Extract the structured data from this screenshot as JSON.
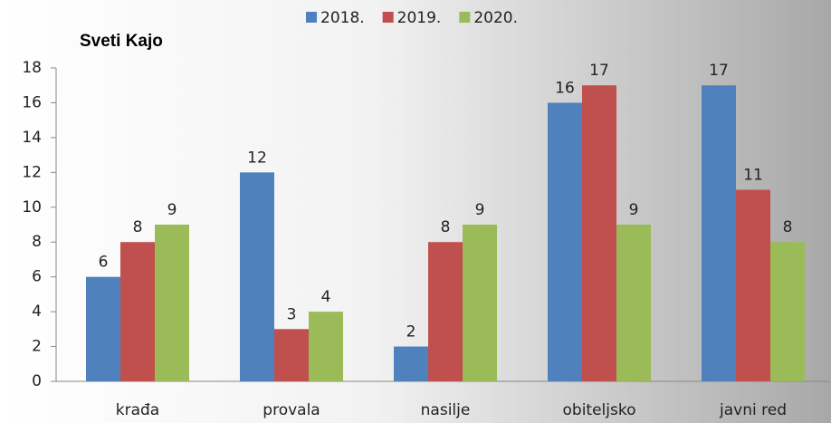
{
  "chart_data": {
    "type": "bar",
    "title": "Sveti Kajo",
    "categories": [
      "krađa",
      "provala",
      "nasilje",
      "obiteljsko",
      "javni red"
    ],
    "series": [
      {
        "name": "2018.",
        "color": "#4f81bd",
        "values": [
          6,
          12,
          2,
          16,
          17
        ]
      },
      {
        "name": "2019.",
        "color": "#c0504d",
        "values": [
          8,
          3,
          8,
          17,
          11
        ]
      },
      {
        "name": "2020.",
        "color": "#9bbb59",
        "values": [
          9,
          4,
          9,
          9,
          8
        ]
      }
    ],
    "ylim": [
      0,
      18
    ],
    "yticks": [
      0,
      2,
      4,
      6,
      8,
      10,
      12,
      14,
      16,
      18
    ],
    "grid": false,
    "legend": "top"
  }
}
